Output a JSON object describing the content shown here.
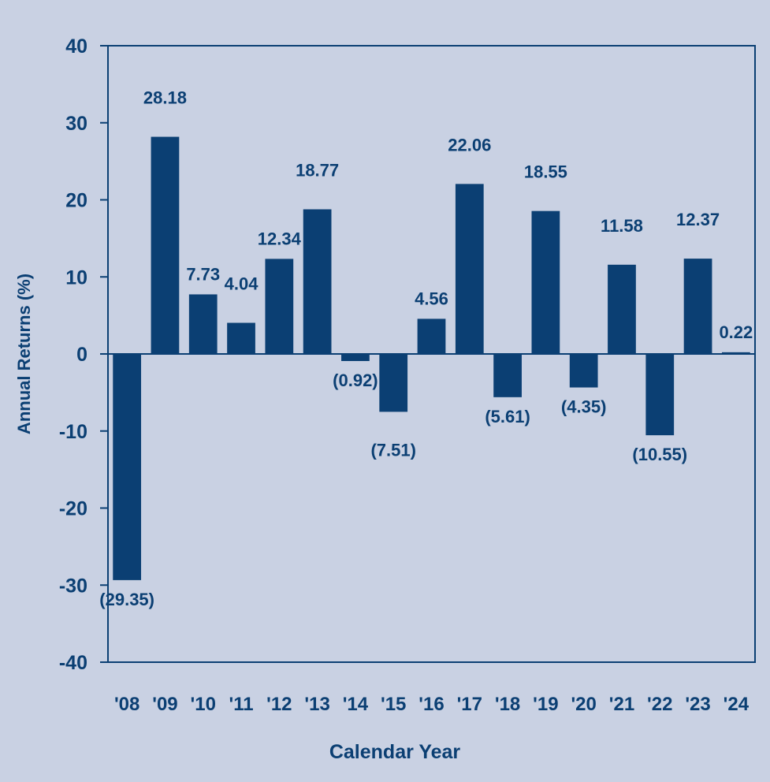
{
  "chart_data": {
    "type": "bar",
    "categories": [
      "'08",
      "'09",
      "'10",
      "'11",
      "'12",
      "'13",
      "'14",
      "'15",
      "'16",
      "'17",
      "'18",
      "'19",
      "'20",
      "'21",
      "'22",
      "'23",
      "'24"
    ],
    "values": [
      -29.35,
      28.18,
      7.73,
      4.04,
      12.34,
      18.77,
      -0.92,
      -7.51,
      4.56,
      22.06,
      -5.61,
      18.55,
      -4.35,
      11.58,
      -10.55,
      12.37,
      0.22
    ],
    "value_labels": [
      "(29.35)",
      "28.18",
      "7.73",
      "4.04",
      "12.34",
      "18.77",
      "(0.92)",
      "(7.51)",
      "4.56",
      "22.06",
      "(5.61)",
      "18.55",
      "(4.35)",
      "11.58",
      "(10.55)",
      "12.37",
      "0.22"
    ],
    "title": "",
    "xlabel": "Calendar Year",
    "ylabel": "Annual Returns (%)",
    "ylim": [
      -40,
      40
    ],
    "yticks": [
      40,
      30,
      20,
      10,
      0,
      -10,
      -20,
      -30,
      -40
    ],
    "grid": false,
    "legend": "none"
  },
  "colors": {
    "background": "#c9d1e3",
    "bar": "#0b3f73",
    "text": "#0b3f73"
  }
}
